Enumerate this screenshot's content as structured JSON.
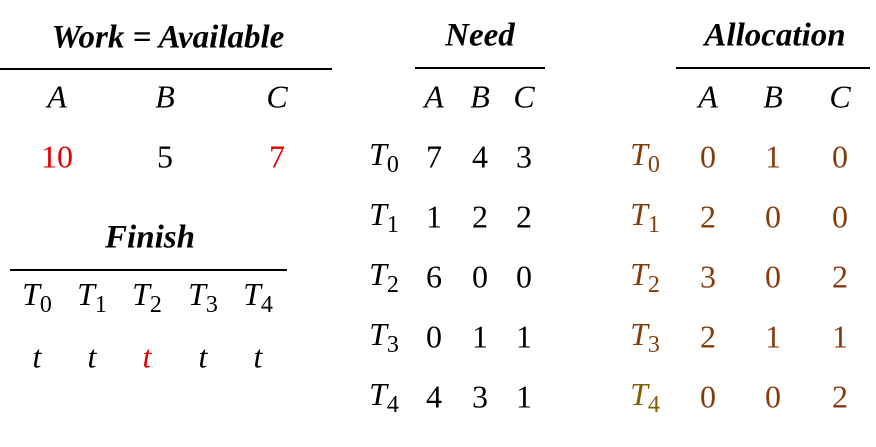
{
  "work": {
    "title": "Work = Available",
    "headers": [
      "A",
      "B",
      "C"
    ],
    "values": [
      10,
      5,
      7
    ],
    "colors": [
      "#e00000",
      "#000000",
      "#e00000"
    ]
  },
  "finish": {
    "title": "Finish",
    "headers": [
      {
        "base": "T",
        "sub": "0"
      },
      {
        "base": "T",
        "sub": "1"
      },
      {
        "base": "T",
        "sub": "2"
      },
      {
        "base": "T",
        "sub": "3"
      },
      {
        "base": "T",
        "sub": "4"
      }
    ],
    "values": [
      "t",
      "t",
      "t",
      "t",
      "t"
    ],
    "colors": [
      "#000000",
      "#000000",
      "#e00000",
      "#000000",
      "#000000"
    ]
  },
  "need": {
    "title": "Need",
    "headers": [
      "A",
      "B",
      "C"
    ],
    "rows": [
      {
        "process": {
          "base": "T",
          "sub": "0"
        },
        "values": [
          7,
          4,
          3
        ]
      },
      {
        "process": {
          "base": "T",
          "sub": "1"
        },
        "values": [
          1,
          2,
          2
        ]
      },
      {
        "process": {
          "base": "T",
          "sub": "2"
        },
        "values": [
          6,
          0,
          0
        ]
      },
      {
        "process": {
          "base": "T",
          "sub": "3"
        },
        "values": [
          0,
          1,
          1
        ]
      },
      {
        "process": {
          "base": "T",
          "sub": "4"
        },
        "values": [
          4,
          3,
          1
        ]
      }
    ]
  },
  "allocation": {
    "title": "Allocation",
    "headers": [
      "A",
      "B",
      "C"
    ],
    "value_color": "#843c0c",
    "rows": [
      {
        "process": {
          "base": "T",
          "sub": "0"
        },
        "values": [
          0,
          1,
          0
        ],
        "label_color": "#843c0c"
      },
      {
        "process": {
          "base": "T",
          "sub": "1"
        },
        "values": [
          2,
          0,
          0
        ],
        "label_color": "#843c0c"
      },
      {
        "process": {
          "base": "T",
          "sub": "2"
        },
        "values": [
          3,
          0,
          2
        ],
        "label_color": "#843c0c"
      },
      {
        "process": {
          "base": "T",
          "sub": "3"
        },
        "values": [
          2,
          1,
          1
        ],
        "label_color": "#843c0c"
      },
      {
        "process": {
          "base": "T",
          "sub": "4"
        },
        "values": [
          0,
          0,
          2
        ],
        "label_color": "#7f6000"
      }
    ]
  }
}
